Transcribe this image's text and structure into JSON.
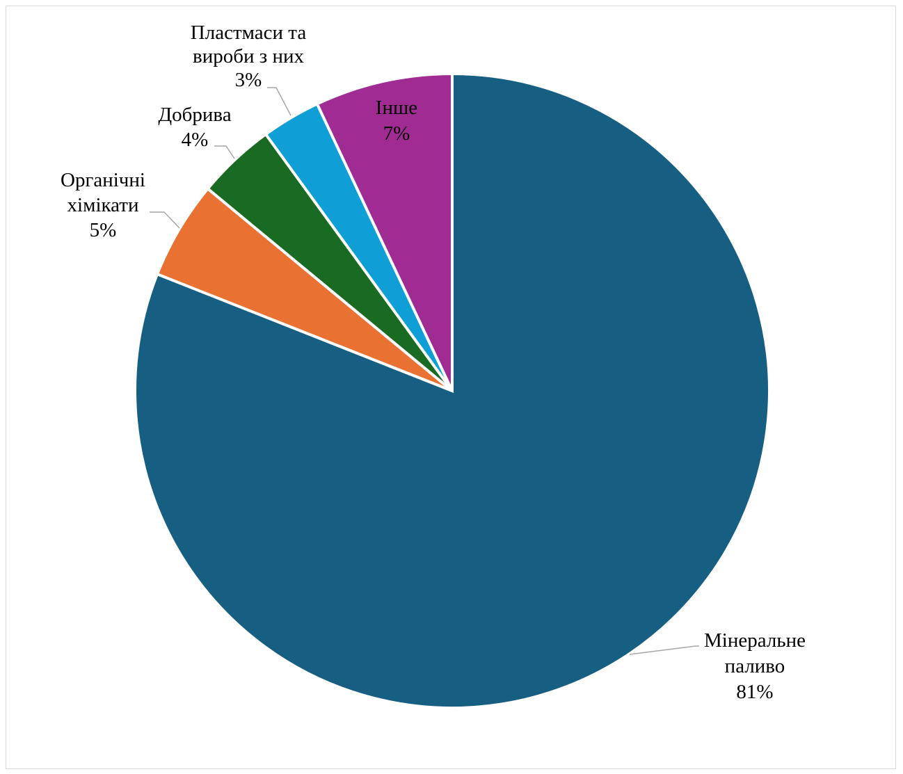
{
  "chart_data": {
    "type": "pie",
    "title": "",
    "start_angle_deg": 0,
    "direction": "clockwise",
    "legend": "none",
    "slices": [
      {
        "label": "Мінеральне паливо",
        "label_lines": [
          "Мінеральне",
          "паливо"
        ],
        "value": 81,
        "value_label": "81%",
        "color": "#175f82"
      },
      {
        "label": "Органічні хімікати",
        "label_lines": [
          "Органічні",
          "хімікати"
        ],
        "value": 5,
        "value_label": "5%",
        "color": "#e97132"
      },
      {
        "label": "Добрива",
        "label_lines": [
          "Добрива"
        ],
        "value": 4,
        "value_label": "4%",
        "color": "#196b24"
      },
      {
        "label": "Пластмаси та вироби з них",
        "label_lines": [
          "Пластмаси та",
          "вироби з них"
        ],
        "value": 3,
        "value_label": "3%",
        "color": "#0f9ed5"
      },
      {
        "label": "Інше",
        "label_lines": [
          "Інше"
        ],
        "value": 7,
        "value_label": "7%",
        "color": "#a02b93"
      }
    ]
  }
}
